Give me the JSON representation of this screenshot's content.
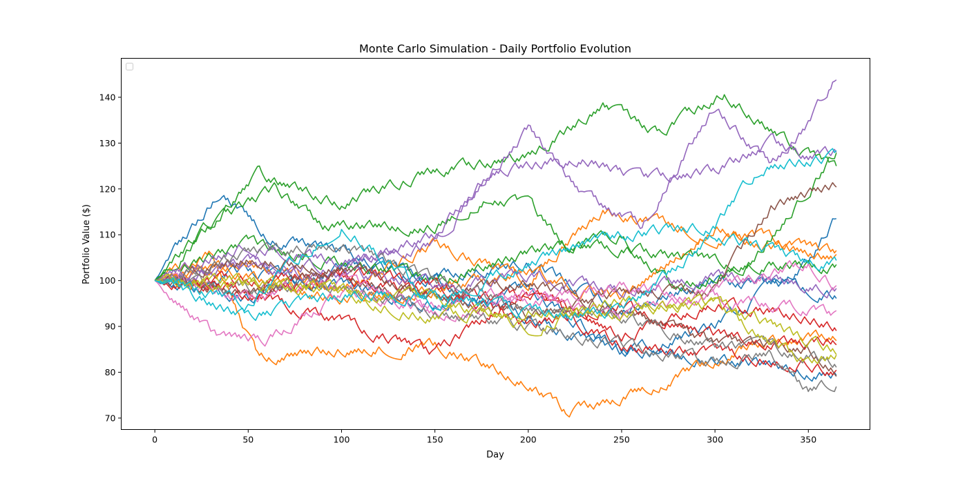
{
  "chart_data": {
    "type": "line",
    "title": "Monte Carlo Simulation - Daily Portfolio Evolution",
    "xlabel": "Day",
    "ylabel": "Portfolio Value ($)",
    "xlim": [
      -18,
      383
    ],
    "ylim": [
      67.5,
      148.5
    ],
    "xticks": [
      0,
      50,
      100,
      150,
      200,
      250,
      300,
      350
    ],
    "yticks": [
      70,
      80,
      90,
      100,
      110,
      120,
      130,
      140
    ],
    "legend": {
      "placement": "upper-left",
      "entries": []
    },
    "grid": false,
    "days": 366,
    "colors": [
      "#1f77b4",
      "#ff7f0e",
      "#2ca02c",
      "#d62728",
      "#9467bd",
      "#8c564b",
      "#e377c2",
      "#7f7f7f",
      "#bcbd22",
      "#17becf"
    ],
    "series": [
      {
        "color": "#1f77b4",
        "waypoints": [
          [
            0,
            100
          ],
          [
            35,
            119.5
          ],
          [
            60,
            110
          ],
          [
            100,
            106
          ],
          [
            150,
            100
          ],
          [
            200,
            92
          ],
          [
            250,
            84
          ],
          [
            300,
            90
          ],
          [
            350,
            104
          ],
          [
            365,
            114
          ]
        ]
      },
      {
        "color": "#1f77b4",
        "waypoints": [
          [
            0,
            100
          ],
          [
            50,
            102
          ],
          [
            100,
            99
          ],
          [
            150,
            95
          ],
          [
            200,
            98
          ],
          [
            250,
            85
          ],
          [
            300,
            83
          ],
          [
            350,
            80
          ],
          [
            365,
            79.5
          ]
        ]
      },
      {
        "color": "#1f77b4",
        "waypoints": [
          [
            0,
            100
          ],
          [
            50,
            96
          ],
          [
            100,
            103
          ],
          [
            150,
            101
          ],
          [
            200,
            104
          ],
          [
            250,
            94
          ],
          [
            300,
            100
          ],
          [
            350,
            98
          ],
          [
            365,
            97
          ]
        ]
      },
      {
        "color": "#ff7f0e",
        "waypoints": [
          [
            0,
            100
          ],
          [
            30,
            106
          ],
          [
            55,
            83
          ],
          [
            100,
            85
          ],
          [
            150,
            86
          ],
          [
            200,
            78
          ],
          [
            220,
            71.5
          ],
          [
            240,
            73
          ],
          [
            280,
            79
          ],
          [
            320,
            86
          ],
          [
            365,
            88
          ]
        ]
      },
      {
        "color": "#ff7f0e",
        "waypoints": [
          [
            0,
            100
          ],
          [
            50,
            104
          ],
          [
            100,
            98
          ],
          [
            150,
            108
          ],
          [
            200,
            100
          ],
          [
            240,
            115
          ],
          [
            300,
            110
          ],
          [
            350,
            106
          ],
          [
            365,
            105
          ]
        ]
      },
      {
        "color": "#ff7f0e",
        "waypoints": [
          [
            0,
            100
          ],
          [
            40,
            102
          ],
          [
            100,
            96
          ],
          [
            150,
            98
          ],
          [
            200,
            102
          ],
          [
            250,
            96
          ],
          [
            300,
            112
          ],
          [
            350,
            107
          ],
          [
            365,
            106
          ]
        ]
      },
      {
        "color": "#2ca02c",
        "waypoints": [
          [
            0,
            100
          ],
          [
            55,
            123
          ],
          [
            100,
            117
          ],
          [
            150,
            124
          ],
          [
            200,
            127
          ],
          [
            240,
            138
          ],
          [
            270,
            132
          ],
          [
            305,
            141
          ],
          [
            340,
            130
          ],
          [
            365,
            124
          ]
        ]
      },
      {
        "color": "#2ca02c",
        "waypoints": [
          [
            0,
            100
          ],
          [
            30,
            112
          ],
          [
            65,
            120
          ],
          [
            90,
            112
          ],
          [
            150,
            112
          ],
          [
            180,
            119
          ],
          [
            200,
            116
          ],
          [
            220,
            108
          ],
          [
            250,
            107
          ],
          [
            300,
            104
          ],
          [
            365,
            103
          ]
        ]
      },
      {
        "color": "#2ca02c",
        "waypoints": [
          [
            0,
            100
          ],
          [
            50,
            108
          ],
          [
            100,
            104
          ],
          [
            150,
            100
          ],
          [
            200,
            106
          ],
          [
            250,
            110
          ],
          [
            280,
            98
          ],
          [
            320,
            104
          ],
          [
            365,
            128
          ]
        ]
      },
      {
        "color": "#d62728",
        "waypoints": [
          [
            0,
            100
          ],
          [
            50,
            97
          ],
          [
            100,
            91
          ],
          [
            150,
            84
          ],
          [
            200,
            98
          ],
          [
            250,
            88
          ],
          [
            300,
            95
          ],
          [
            350,
            92
          ],
          [
            365,
            90
          ]
        ]
      },
      {
        "color": "#d62728",
        "waypoints": [
          [
            0,
            100
          ],
          [
            50,
            100
          ],
          [
            100,
            102
          ],
          [
            150,
            99
          ],
          [
            200,
            90
          ],
          [
            250,
            95
          ],
          [
            300,
            88
          ],
          [
            350,
            86
          ],
          [
            365,
            87
          ]
        ]
      },
      {
        "color": "#d62728",
        "waypoints": [
          [
            0,
            100
          ],
          [
            50,
            98
          ],
          [
            100,
            100
          ],
          [
            150,
            97
          ],
          [
            200,
            96
          ],
          [
            250,
            86
          ],
          [
            300,
            84
          ],
          [
            350,
            82
          ],
          [
            365,
            80
          ]
        ]
      },
      {
        "color": "#9467bd",
        "waypoints": [
          [
            0,
            100
          ],
          [
            50,
            104
          ],
          [
            100,
            103
          ],
          [
            150,
            110
          ],
          [
            200,
            133
          ],
          [
            230,
            118
          ],
          [
            260,
            112
          ],
          [
            300,
            138
          ],
          [
            330,
            125
          ],
          [
            350,
            134
          ],
          [
            365,
            145
          ]
        ]
      },
      {
        "color": "#9467bd",
        "waypoints": [
          [
            0,
            100
          ],
          [
            50,
            108
          ],
          [
            100,
            104
          ],
          [
            150,
            108
          ],
          [
            180,
            124
          ],
          [
            230,
            127
          ],
          [
            260,
            122
          ],
          [
            300,
            124
          ],
          [
            330,
            130
          ],
          [
            350,
            127
          ],
          [
            365,
            128
          ]
        ]
      },
      {
        "color": "#9467bd",
        "waypoints": [
          [
            0,
            100
          ],
          [
            40,
            102
          ],
          [
            100,
            101
          ],
          [
            150,
            99
          ],
          [
            200,
            101
          ],
          [
            250,
            98
          ],
          [
            300,
            101
          ],
          [
            350,
            99
          ],
          [
            365,
            98
          ]
        ]
      },
      {
        "color": "#8c564b",
        "waypoints": [
          [
            0,
            100
          ],
          [
            50,
            105
          ],
          [
            100,
            103
          ],
          [
            150,
            97
          ],
          [
            200,
            92
          ],
          [
            250,
            97
          ],
          [
            300,
            98
          ],
          [
            330,
            116
          ],
          [
            365,
            121
          ]
        ]
      },
      {
        "color": "#8c564b",
        "waypoints": [
          [
            0,
            100
          ],
          [
            50,
            97
          ],
          [
            100,
            102
          ],
          [
            150,
            96
          ],
          [
            200,
            100
          ],
          [
            250,
            93
          ],
          [
            300,
            86
          ],
          [
            350,
            85
          ],
          [
            365,
            81
          ]
        ]
      },
      {
        "color": "#e377c2",
        "waypoints": [
          [
            0,
            100
          ],
          [
            35,
            87
          ],
          [
            60,
            87
          ],
          [
            100,
            97
          ],
          [
            150,
            95
          ],
          [
            200,
            98
          ],
          [
            250,
            91
          ],
          [
            300,
            98
          ],
          [
            350,
            104
          ],
          [
            365,
            99
          ]
        ]
      },
      {
        "color": "#e377c2",
        "waypoints": [
          [
            0,
            100
          ],
          [
            50,
            96
          ],
          [
            100,
            100
          ],
          [
            150,
            93
          ],
          [
            200,
            95
          ],
          [
            250,
            99
          ],
          [
            300,
            96
          ],
          [
            350,
            94
          ],
          [
            365,
            92
          ]
        ]
      },
      {
        "color": "#7f7f7f",
        "waypoints": [
          [
            0,
            100
          ],
          [
            50,
            98
          ],
          [
            100,
            99
          ],
          [
            150,
            93
          ],
          [
            200,
            90
          ],
          [
            250,
            86
          ],
          [
            300,
            82
          ],
          [
            330,
            84
          ],
          [
            350,
            76
          ],
          [
            365,
            78
          ]
        ]
      },
      {
        "color": "#7f7f7f",
        "waypoints": [
          [
            0,
            100
          ],
          [
            50,
            106
          ],
          [
            100,
            108
          ],
          [
            150,
            100
          ],
          [
            200,
            94
          ],
          [
            250,
            92
          ],
          [
            300,
            86
          ],
          [
            350,
            84
          ],
          [
            365,
            82
          ]
        ]
      },
      {
        "color": "#bcbd22",
        "waypoints": [
          [
            0,
            100
          ],
          [
            50,
            99
          ],
          [
            100,
            98
          ],
          [
            150,
            96
          ],
          [
            200,
            90
          ],
          [
            250,
            96
          ],
          [
            300,
            94
          ],
          [
            350,
            82
          ],
          [
            365,
            84
          ]
        ]
      },
      {
        "color": "#bcbd22",
        "waypoints": [
          [
            0,
            100
          ],
          [
            50,
            100
          ],
          [
            100,
            97
          ],
          [
            150,
            92
          ],
          [
            200,
            94
          ],
          [
            250,
            93
          ],
          [
            300,
            95
          ],
          [
            350,
            87
          ],
          [
            365,
            85
          ]
        ]
      },
      {
        "color": "#17becf",
        "waypoints": [
          [
            0,
            100
          ],
          [
            50,
            95
          ],
          [
            100,
            113
          ],
          [
            150,
            95
          ],
          [
            200,
            104
          ],
          [
            250,
            110
          ],
          [
            300,
            112
          ],
          [
            325,
            125
          ],
          [
            365,
            127
          ]
        ]
      },
      {
        "color": "#17becf",
        "waypoints": [
          [
            0,
            100
          ],
          [
            50,
            92
          ],
          [
            100,
            97
          ],
          [
            150,
            97
          ],
          [
            200,
            93
          ],
          [
            250,
            93
          ],
          [
            300,
            110
          ],
          [
            350,
            104
          ],
          [
            365,
            104
          ]
        ]
      }
    ]
  }
}
